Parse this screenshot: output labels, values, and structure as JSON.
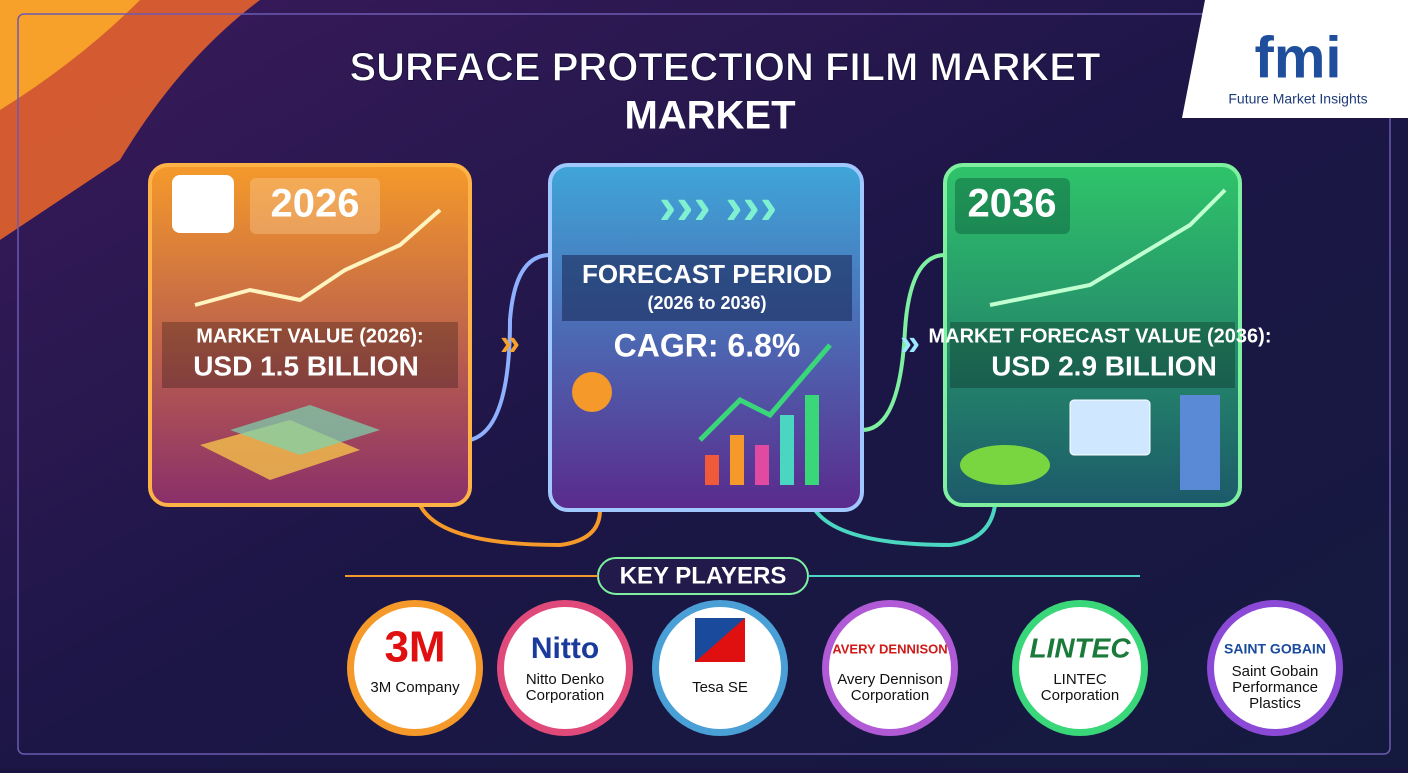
{
  "header": {
    "title_lines": [
      "SURFACE PROTECTION FILM MARKET",
      "MARKET"
    ]
  },
  "logo": {
    "mark": "fmi",
    "name": "Future Market Insights"
  },
  "panels": [
    {
      "year": "2026",
      "label": "MARKET VALUE (2026):",
      "value": "USD 1.5 BILLION"
    },
    {
      "title": "FORECAST PERIOD",
      "subtitle": "(2026 to 2036)",
      "value": "CAGR: 6.8%"
    },
    {
      "year": "2036",
      "label": "MARKET FORECAST VALUE (2036):",
      "value": "USD 2.9 BILLION"
    }
  ],
  "key_players": {
    "title": "KEY PLAYERS",
    "players": [
      {
        "logo": "3M",
        "name_lines": [
          "3M Company"
        ]
      },
      {
        "logo": "Nitto",
        "name_lines": [
          "Nitto Denko",
          "Corporation"
        ]
      },
      {
        "logo": "",
        "name_lines": [
          "Tesa SE"
        ]
      },
      {
        "logo": "AVERY DENNISON",
        "name_lines": [
          "Avery Dennison",
          "Corporation"
        ]
      },
      {
        "logo": "LINTEC",
        "name_lines": [
          "LINTEC",
          "Corporation"
        ]
      },
      {
        "logo": "SAINT GOBAIN",
        "name_lines": [
          "Saint Gobain",
          "Performance",
          "Plastics"
        ]
      }
    ]
  }
}
